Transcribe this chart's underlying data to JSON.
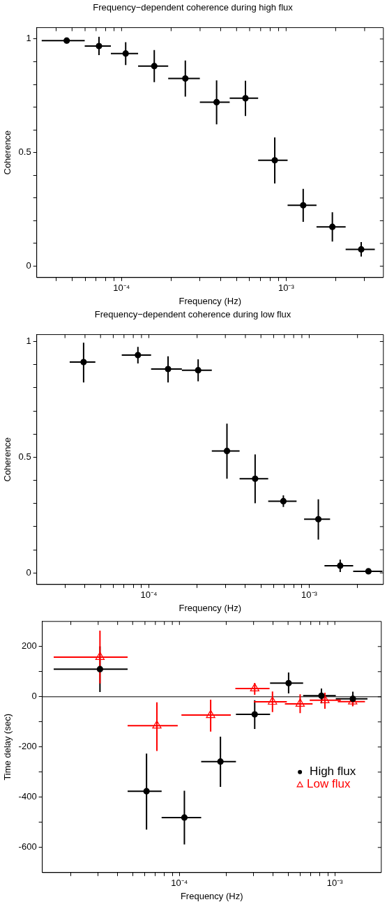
{
  "chart_data": [
    {
      "type": "scatter",
      "title": "Frequency−dependent coherence during high flux",
      "xlabel": "Frequency (Hz)",
      "ylabel": "Coherence",
      "log": "x",
      "marker": "circle",
      "color": "#000000",
      "x": [
        4.64e-05,
        7.29e-05,
        0.0001059,
        0.000158,
        0.000244,
        0.000378,
        0.000566,
        0.000853,
        0.00127,
        0.00191,
        0.00286
      ],
      "values": [
        0.993,
        0.969,
        0.936,
        0.881,
        0.826,
        0.722,
        0.739,
        0.466,
        0.268,
        0.173,
        0.074
      ],
      "errors": [
        null,
        [
          0.929,
          1.01
        ],
        [
          0.885,
          0.986
        ],
        [
          0.81,
          0.951
        ],
        [
          0.746,
          0.905
        ],
        [
          0.624,
          0.818
        ],
        [
          0.661,
          0.816
        ],
        [
          0.364,
          0.567
        ],
        [
          0.195,
          0.34
        ],
        [
          0.108,
          0.237
        ],
        [
          0.042,
          0.106
        ]
      ],
      "xerrors": [
        [
          3.27e-05,
          5.97e-05
        ],
        [
          5.97e-05,
          8.61e-05
        ],
        [
          8.61e-05,
          0.000126
        ],
        [
          0.000126,
          0.000192
        ],
        [
          0.000192,
          0.000299
        ],
        [
          0.000299,
          0.000454
        ],
        [
          0.000454,
          0.000676
        ],
        [
          0.000676,
          0.001021
        ],
        [
          0.001021,
          0.00153
        ],
        [
          0.00153,
          0.0023
        ],
        [
          0.0023,
          0.00346
        ]
      ],
      "xlim": [
        3.05e-05,
        0.0039
      ],
      "xticks": [
        {
          "value": 4e-05,
          "label": null
        },
        {
          "value": 5e-05,
          "label": null
        },
        {
          "value": 6e-05,
          "label": null
        },
        {
          "value": 7e-05,
          "label": null
        },
        {
          "value": 8e-05,
          "label": null
        },
        {
          "value": 9e-05,
          "label": null
        },
        {
          "value": 0.0001,
          "label": "10⁻⁴"
        },
        {
          "value": 0.0002,
          "label": null
        },
        {
          "value": 0.0003,
          "label": null
        },
        {
          "value": 0.0004,
          "label": null
        },
        {
          "value": 0.0005,
          "label": null
        },
        {
          "value": 0.0006,
          "label": null
        },
        {
          "value": 0.0007,
          "label": null
        },
        {
          "value": 0.0008,
          "label": null
        },
        {
          "value": 0.0009,
          "label": null
        },
        {
          "value": 0.001,
          "label": "10⁻³"
        },
        {
          "value": 0.002,
          "label": null
        },
        {
          "value": 0.003,
          "label": null
        }
      ],
      "ylim": [
        -0.05,
        1.05
      ],
      "yticks": [
        0,
        {
          "value": 0.1,
          "label": null
        },
        {
          "value": 0.2,
          "label": null
        },
        {
          "value": 0.3,
          "label": null
        },
        {
          "value": 0.4,
          "label": null
        },
        0.5,
        {
          "value": 0.6,
          "label": null
        },
        {
          "value": 0.7,
          "label": null
        },
        {
          "value": 0.8,
          "label": null
        },
        {
          "value": 0.9,
          "label": null
        },
        1
      ]
    },
    {
      "type": "scatter",
      "title": "Frequency−dependent coherence during low flux",
      "xlabel": "Frequency (Hz)",
      "ylabel": "Coherence",
      "log": "x",
      "marker": "circle",
      "color": "#000000",
      "x": [
        3.92e-05,
        8.55e-05,
        0.0001318,
        0.000203,
        0.000307,
        0.00046,
        0.00069,
        0.00114,
        0.00156,
        0.00234
      ],
      "values": [
        0.911,
        0.941,
        0.881,
        0.876,
        0.527,
        0.407,
        0.31,
        0.232,
        0.031,
        0.007
      ],
      "errors": [
        [
          0.823,
          0.995
        ],
        [
          0.905,
          0.977
        ],
        [
          0.823,
          0.936
        ],
        [
          0.828,
          0.923
        ],
        [
          0.407,
          0.645
        ],
        [
          0.301,
          0.512
        ],
        [
          0.285,
          0.335
        ],
        [
          0.144,
          0.318
        ],
        [
          0.004,
          0.057
        ],
        [
          0.0,
          0.015
        ]
      ],
      "xerrors": [
        [
          3.21e-05,
          4.64e-05
        ],
        [
          6.78e-05,
          0.0001033
        ],
        [
          0.0001033,
          0.0001607
        ],
        [
          0.0001607,
          0.000247
        ],
        [
          0.000247,
          0.000368
        ],
        [
          0.000368,
          0.000555
        ],
        [
          0.000555,
          0.000834
        ],
        [
          0.000929,
          0.001349
        ],
        [
          0.001245,
          0.00188
        ],
        [
          0.00188,
          0.00286
        ]
      ],
      "xlim": [
        2e-05,
        0.0029
      ],
      "xticks": [
        {
          "value": 3e-05,
          "label": null
        },
        {
          "value": 4e-05,
          "label": null
        },
        {
          "value": 5e-05,
          "label": null
        },
        {
          "value": 6e-05,
          "label": null
        },
        {
          "value": 7e-05,
          "label": null
        },
        {
          "value": 8e-05,
          "label": null
        },
        {
          "value": 9e-05,
          "label": null
        },
        {
          "value": 0.0001,
          "label": "10⁻⁴"
        },
        {
          "value": 0.0002,
          "label": null
        },
        {
          "value": 0.0003,
          "label": null
        },
        {
          "value": 0.0004,
          "label": null
        },
        {
          "value": 0.0005,
          "label": null
        },
        {
          "value": 0.0006,
          "label": null
        },
        {
          "value": 0.0007,
          "label": null
        },
        {
          "value": 0.0008,
          "label": null
        },
        {
          "value": 0.0009,
          "label": null
        },
        {
          "value": 0.001,
          "label": "10⁻³"
        },
        {
          "value": 0.002,
          "label": null
        }
      ],
      "ylim": [
        -0.05,
        1.03
      ],
      "yticks": [
        0,
        {
          "value": 0.1,
          "label": null
        },
        {
          "value": 0.2,
          "label": null
        },
        {
          "value": 0.3,
          "label": null
        },
        {
          "value": 0.4,
          "label": null
        },
        0.5,
        {
          "value": 0.6,
          "label": null
        },
        {
          "value": 0.7,
          "label": null
        },
        {
          "value": 0.8,
          "label": null
        },
        {
          "value": 0.9,
          "label": null
        },
        1
      ]
    },
    {
      "type": "scatter",
      "xlabel": "Frequency (Hz)",
      "ylabel": "Time delay (sec)",
      "log": "x",
      "legend": "right",
      "series": [
        {
          "name": "High flux",
          "color": "#000000",
          "marker": "circle",
          "x": [
            3.08e-05,
            6.14e-05,
            0.0001076,
            0.0001836,
            0.000305,
            0.000504,
            0.00082,
            0.001306
          ],
          "values": [
            110,
            -376,
            -481,
            -258,
            -70,
            54,
            4,
            -8
          ],
          "errors": [
            [
              19,
              201
            ],
            [
              -529,
              -226
            ],
            [
              -588,
              -374
            ],
            [
              -359,
              -159
            ],
            [
              -128,
              -14
            ],
            [
              13,
              97
            ],
            [
              -26,
              33
            ],
            [
              -35,
              20
            ]
          ],
          "xerrors": [
            [
              1.552e-05,
              4.64e-05
            ],
            [
              4.64e-05,
              7.68e-05
            ],
            [
              7.68e-05,
              0.000138
            ],
            [
              0.000138,
              0.000231
            ],
            [
              0.000231,
              0.000383
            ],
            [
              0.000383,
              0.000625
            ],
            [
              0.000625,
              0.001014
            ],
            [
              0.001014,
              0.001622
            ]
          ]
        },
        {
          "name": "Low flux",
          "color": "#ff0000",
          "marker": "triangle",
          "x": [
            3.08e-05,
            7.16e-05,
            0.0001588,
            0.000305,
            0.000397,
            0.000598,
            0.000863,
            0.001303
          ],
          "values": [
            158,
            -115,
            -73,
            33,
            -20,
            -28,
            -14,
            -19
          ],
          "errors": [
            [
              53,
              263
            ],
            [
              -216,
              -22
            ],
            [
              -139,
              -12
            ],
            [
              8,
              55
            ],
            [
              -61,
              21
            ],
            [
              -65,
              10
            ],
            [
              -48,
              16
            ],
            [
              -38,
              1
            ]
          ],
          "xerrors": [
            [
              1.552e-05,
              4.64e-05
            ],
            [
              4.64e-05,
              9.75e-05
            ],
            [
              0.000103,
              0.000214
            ],
            [
              0.000229,
              0.00038
            ],
            [
              0.000301,
              0.000491
            ],
            [
              0.000477,
              0.000719
            ],
            [
              0.000689,
              0.001092
            ],
            [
              0.001045,
              0.001563
            ]
          ]
        }
      ],
      "ref_lines": [
        {
          "axis": "y",
          "value": 0,
          "color": "#000000"
        }
      ],
      "xlim": [
        1.31e-05,
        0.00199
      ],
      "xticks": [
        {
          "value": 2e-05,
          "label": null
        },
        {
          "value": 3e-05,
          "label": null
        },
        {
          "value": 4e-05,
          "label": null
        },
        {
          "value": 5e-05,
          "label": null
        },
        {
          "value": 6e-05,
          "label": null
        },
        {
          "value": 7e-05,
          "label": null
        },
        {
          "value": 8e-05,
          "label": null
        },
        {
          "value": 9e-05,
          "label": null
        },
        {
          "value": 0.0001,
          "label": "10⁻⁴"
        },
        {
          "value": 0.0002,
          "label": null
        },
        {
          "value": 0.0003,
          "label": null
        },
        {
          "value": 0.0004,
          "label": null
        },
        {
          "value": 0.0005,
          "label": null
        },
        {
          "value": 0.0006,
          "label": null
        },
        {
          "value": 0.0007,
          "label": null
        },
        {
          "value": 0.0008,
          "label": null
        },
        {
          "value": 0.0009,
          "label": null
        },
        {
          "value": 0.001,
          "label": "10⁻³"
        }
      ],
      "ylim": [
        -700,
        300
      ],
      "yticks": [
        -600,
        {
          "value": -500,
          "label": null
        },
        -400,
        {
          "value": -300,
          "label": null
        },
        -200,
        {
          "value": -100,
          "label": null
        },
        0,
        {
          "value": 100,
          "label": null
        },
        200
      ]
    }
  ]
}
